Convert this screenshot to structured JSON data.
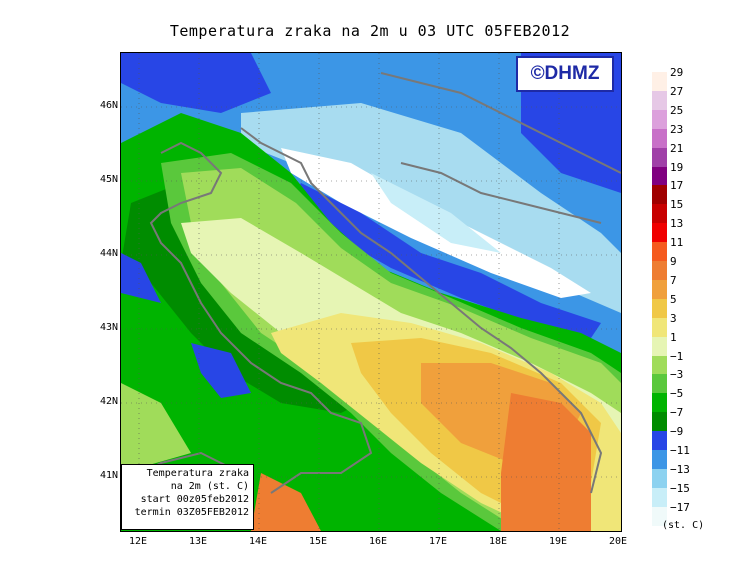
{
  "title": "Temperatura zraka na 2m u 03 UTC 05FEB2012",
  "logo": "©DHMZ",
  "infobox": {
    "line1": "Temperatura zraka",
    "line2": "na 2m (st. C)",
    "line3": "start 00z05feb2012",
    "line4": "termin 03Z05FEB2012"
  },
  "x_ticks": [
    "12E",
    "13E",
    "14E",
    "15E",
    "16E",
    "17E",
    "18E",
    "19E",
    "20E"
  ],
  "y_ticks": [
    "46N",
    "45N",
    "44N",
    "43N",
    "42N",
    "41N"
  ],
  "legend": {
    "labels": [
      "29",
      "27",
      "25",
      "23",
      "21",
      "19",
      "17",
      "15",
      "13",
      "11",
      "9",
      "7",
      "5",
      "3",
      "1",
      "−1",
      "−3",
      "−5",
      "−7",
      "−9",
      "−11",
      "−13",
      "−15",
      "−17"
    ],
    "colors": [
      "#fff0e6",
      "#e6c8e6",
      "#dca0dc",
      "#c870c8",
      "#a040a8",
      "#800080",
      "#a00000",
      "#c80000",
      "#f00000",
      "#f55a1e",
      "#ee7d32",
      "#f0a03c",
      "#f0c846",
      "#f0e678",
      "#e6f5b4",
      "#a0dc5a",
      "#5ac83c",
      "#00b400",
      "#008c00",
      "#2846e6",
      "#3c96e6",
      "#8cd2f0",
      "#c8eef8",
      "#f0fafa"
    ],
    "units": "(st. C)"
  },
  "map_colors": {
    "sea_cold": "#5a9ef0",
    "land_cold": "#3c96e6",
    "snow": "#ffffff",
    "ice": "#c8eef8",
    "pale": "#a8dcf0",
    "deep_cold": "#2846e6",
    "green_dark": "#008c00",
    "green": "#00b400",
    "green_mid": "#5ac83c",
    "green_light": "#a0dc5a",
    "yellow_pale": "#e6f5b4",
    "yellow": "#f0e678",
    "yellow_dark": "#f0c846",
    "orange": "#f0a03c",
    "orange_dark": "#ee7d32",
    "coast": "#787878"
  }
}
